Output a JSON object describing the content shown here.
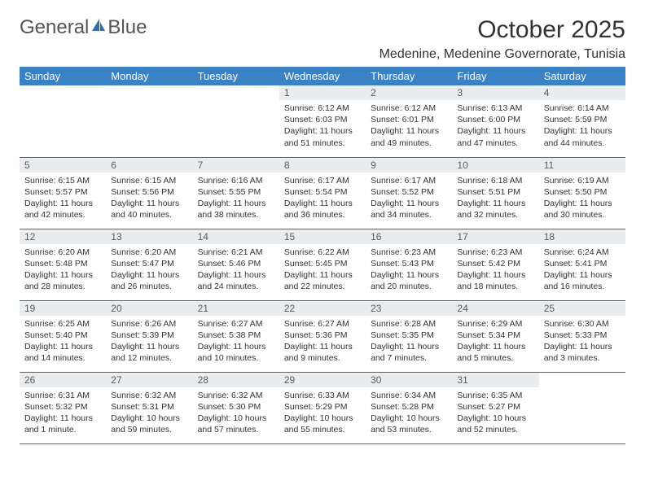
{
  "brand": {
    "part1": "General",
    "part2": "Blue"
  },
  "title": "October 2025",
  "location": "Medenine, Medenine Governorate, Tunisia",
  "colors": {
    "header_bg": "#3b82c4",
    "header_text": "#ffffff",
    "daynum_bg": "#e9edf0",
    "border": "#3b6fa0",
    "logo_blue": "#2f6fb0"
  },
  "dayNames": [
    "Sunday",
    "Monday",
    "Tuesday",
    "Wednesday",
    "Thursday",
    "Friday",
    "Saturday"
  ],
  "weeks": [
    [
      {
        "n": "",
        "t": "",
        "empty": true
      },
      {
        "n": "",
        "t": "",
        "empty": true
      },
      {
        "n": "",
        "t": "",
        "empty": true
      },
      {
        "n": "1",
        "t": "Sunrise: 6:12 AM\nSunset: 6:03 PM\nDaylight: 11 hours and 51 minutes."
      },
      {
        "n": "2",
        "t": "Sunrise: 6:12 AM\nSunset: 6:01 PM\nDaylight: 11 hours and 49 minutes."
      },
      {
        "n": "3",
        "t": "Sunrise: 6:13 AM\nSunset: 6:00 PM\nDaylight: 11 hours and 47 minutes."
      },
      {
        "n": "4",
        "t": "Sunrise: 6:14 AM\nSunset: 5:59 PM\nDaylight: 11 hours and 44 minutes."
      }
    ],
    [
      {
        "n": "5",
        "t": "Sunrise: 6:15 AM\nSunset: 5:57 PM\nDaylight: 11 hours and 42 minutes."
      },
      {
        "n": "6",
        "t": "Sunrise: 6:15 AM\nSunset: 5:56 PM\nDaylight: 11 hours and 40 minutes."
      },
      {
        "n": "7",
        "t": "Sunrise: 6:16 AM\nSunset: 5:55 PM\nDaylight: 11 hours and 38 minutes."
      },
      {
        "n": "8",
        "t": "Sunrise: 6:17 AM\nSunset: 5:54 PM\nDaylight: 11 hours and 36 minutes."
      },
      {
        "n": "9",
        "t": "Sunrise: 6:17 AM\nSunset: 5:52 PM\nDaylight: 11 hours and 34 minutes."
      },
      {
        "n": "10",
        "t": "Sunrise: 6:18 AM\nSunset: 5:51 PM\nDaylight: 11 hours and 32 minutes."
      },
      {
        "n": "11",
        "t": "Sunrise: 6:19 AM\nSunset: 5:50 PM\nDaylight: 11 hours and 30 minutes."
      }
    ],
    [
      {
        "n": "12",
        "t": "Sunrise: 6:20 AM\nSunset: 5:48 PM\nDaylight: 11 hours and 28 minutes."
      },
      {
        "n": "13",
        "t": "Sunrise: 6:20 AM\nSunset: 5:47 PM\nDaylight: 11 hours and 26 minutes."
      },
      {
        "n": "14",
        "t": "Sunrise: 6:21 AM\nSunset: 5:46 PM\nDaylight: 11 hours and 24 minutes."
      },
      {
        "n": "15",
        "t": "Sunrise: 6:22 AM\nSunset: 5:45 PM\nDaylight: 11 hours and 22 minutes."
      },
      {
        "n": "16",
        "t": "Sunrise: 6:23 AM\nSunset: 5:43 PM\nDaylight: 11 hours and 20 minutes."
      },
      {
        "n": "17",
        "t": "Sunrise: 6:23 AM\nSunset: 5:42 PM\nDaylight: 11 hours and 18 minutes."
      },
      {
        "n": "18",
        "t": "Sunrise: 6:24 AM\nSunset: 5:41 PM\nDaylight: 11 hours and 16 minutes."
      }
    ],
    [
      {
        "n": "19",
        "t": "Sunrise: 6:25 AM\nSunset: 5:40 PM\nDaylight: 11 hours and 14 minutes."
      },
      {
        "n": "20",
        "t": "Sunrise: 6:26 AM\nSunset: 5:39 PM\nDaylight: 11 hours and 12 minutes."
      },
      {
        "n": "21",
        "t": "Sunrise: 6:27 AM\nSunset: 5:38 PM\nDaylight: 11 hours and 10 minutes."
      },
      {
        "n": "22",
        "t": "Sunrise: 6:27 AM\nSunset: 5:36 PM\nDaylight: 11 hours and 9 minutes."
      },
      {
        "n": "23",
        "t": "Sunrise: 6:28 AM\nSunset: 5:35 PM\nDaylight: 11 hours and 7 minutes."
      },
      {
        "n": "24",
        "t": "Sunrise: 6:29 AM\nSunset: 5:34 PM\nDaylight: 11 hours and 5 minutes."
      },
      {
        "n": "25",
        "t": "Sunrise: 6:30 AM\nSunset: 5:33 PM\nDaylight: 11 hours and 3 minutes."
      }
    ],
    [
      {
        "n": "26",
        "t": "Sunrise: 6:31 AM\nSunset: 5:32 PM\nDaylight: 11 hours and 1 minute."
      },
      {
        "n": "27",
        "t": "Sunrise: 6:32 AM\nSunset: 5:31 PM\nDaylight: 10 hours and 59 minutes."
      },
      {
        "n": "28",
        "t": "Sunrise: 6:32 AM\nSunset: 5:30 PM\nDaylight: 10 hours and 57 minutes."
      },
      {
        "n": "29",
        "t": "Sunrise: 6:33 AM\nSunset: 5:29 PM\nDaylight: 10 hours and 55 minutes."
      },
      {
        "n": "30",
        "t": "Sunrise: 6:34 AM\nSunset: 5:28 PM\nDaylight: 10 hours and 53 minutes."
      },
      {
        "n": "31",
        "t": "Sunrise: 6:35 AM\nSunset: 5:27 PM\nDaylight: 10 hours and 52 minutes."
      },
      {
        "n": "",
        "t": "",
        "empty": true
      }
    ]
  ]
}
